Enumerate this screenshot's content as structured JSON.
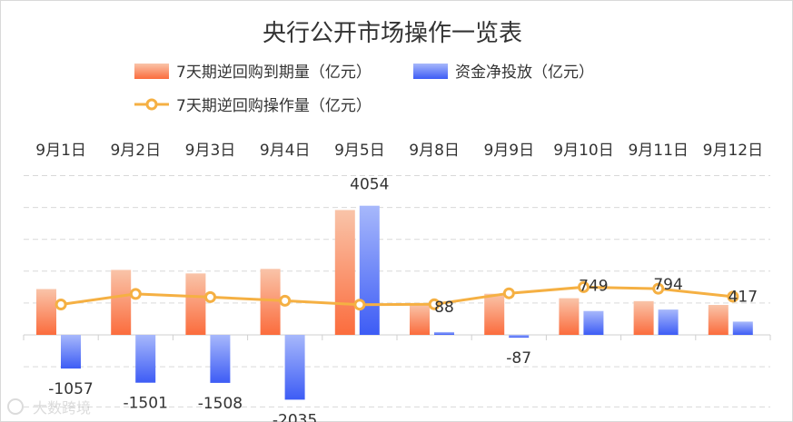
{
  "chart_data": {
    "type": "bar",
    "title": "央行公开市场操作一览表",
    "categories": [
      "9月1日",
      "9月2日",
      "9月3日",
      "9月4日",
      "9月5日",
      "9月8日",
      "9月9日",
      "9月10日",
      "9月11日",
      "9月12日"
    ],
    "series": [
      {
        "name": "7天期逆回购到期量（亿元）",
        "type": "bar",
        "values": [
          1440,
          2040,
          1930,
          2070,
          3920,
          960,
          1290,
          1150,
          1060,
          940
        ]
      },
      {
        "name": "资金净投放（亿元）",
        "type": "bar",
        "values": [
          -1057,
          -1501,
          -1508,
          -2035,
          4054,
          88,
          -87,
          749,
          794,
          417
        ],
        "data_labels": [
          "-1057",
          "-1501",
          "-1508",
          "-2035",
          "4054",
          "88",
          "-87",
          "749",
          "794",
          "417"
        ]
      },
      {
        "name": "7天期逆回购操作量（亿元）",
        "type": "line",
        "values": [
          955,
          1285,
          1185,
          1070,
          950,
          960,
          1305,
          1500,
          1450,
          1200
        ]
      }
    ],
    "ylim": [
      -2100,
      5000
    ],
    "grid": true,
    "legend_position": "top",
    "category_axis_position": "top",
    "colors": {
      "expiry_bar_top": "#f9c4a9",
      "expiry_bar_bottom": "#fb6c3d",
      "net_bar_top": "#a7b8fb",
      "net_bar_bottom": "#3d5cf5",
      "line": "#f5b043",
      "grid": "#d9d9d9"
    }
  },
  "watermark": "大数跨境"
}
